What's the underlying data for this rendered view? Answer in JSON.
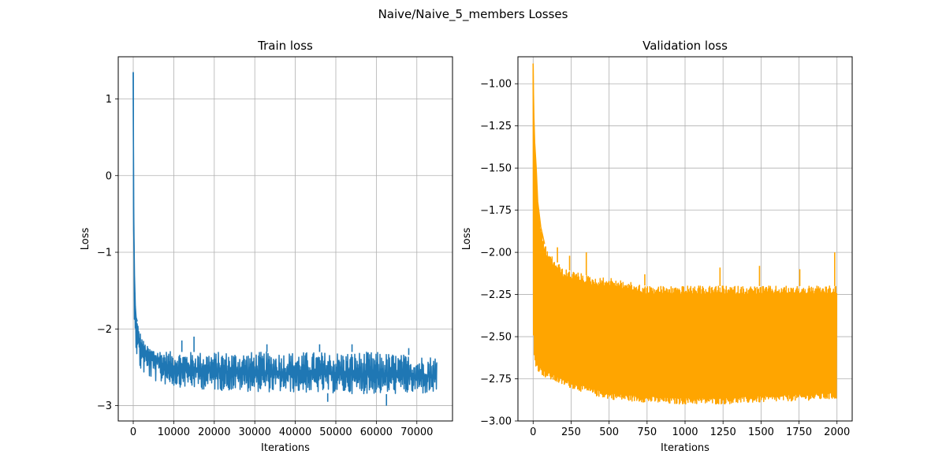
{
  "figure": {
    "suptitle": "Naive/Naive_5_members Losses"
  },
  "chart_data": [
    {
      "type": "line",
      "title": "Train loss",
      "xlabel": "Iterations",
      "ylabel": "Loss",
      "xlim": [
        -3700,
        78800
      ],
      "ylim": [
        -3.2,
        1.55
      ],
      "xticks": [
        0,
        10000,
        20000,
        30000,
        40000,
        50000,
        60000,
        70000
      ],
      "xtick_labels": [
        "0",
        "10000",
        "20000",
        "30000",
        "40000",
        "50000",
        "60000",
        "70000"
      ],
      "yticks": [
        1,
        0,
        -1,
        -2,
        -3
      ],
      "ytick_labels": [
        "1",
        "0",
        "−1",
        "−2",
        "−3"
      ],
      "grid": true,
      "color": "#1f77b4",
      "series": [
        {
          "x": [
            0,
            50,
            100,
            200,
            300,
            500,
            700,
            1000,
            1500,
            2000,
            2500,
            3000,
            4000,
            5000,
            7000,
            10000,
            15000,
            20000,
            30000,
            40000,
            50000,
            60000,
            70000,
            75000
          ],
          "y": [
            1.35,
            0.3,
            -0.55,
            -1.1,
            -1.5,
            -1.8,
            -1.95,
            -2.05,
            -2.15,
            -2.2,
            -2.25,
            -2.3,
            -2.35,
            -2.4,
            -2.45,
            -2.5,
            -2.53,
            -2.55,
            -2.57,
            -2.58,
            -2.59,
            -2.6,
            -2.61,
            -2.61
          ],
          "band_upper": [
            1.35,
            0.4,
            -0.4,
            -0.9,
            -1.3,
            -1.7,
            -1.85,
            -1.9,
            -2.0,
            -2.1,
            -2.15,
            -2.2,
            -2.25,
            -2.25,
            -2.28,
            -2.3,
            -2.3,
            -2.3,
            -2.3,
            -2.3,
            -2.3,
            -2.3,
            -2.35,
            -2.35
          ],
          "band_lower": [
            1.35,
            -0.6,
            -1.2,
            -1.6,
            -1.9,
            -2.1,
            -2.3,
            -2.45,
            -2.55,
            -2.58,
            -2.6,
            -2.62,
            -2.65,
            -2.68,
            -2.72,
            -2.75,
            -2.78,
            -2.8,
            -2.82,
            -2.83,
            -2.84,
            -2.85,
            -2.85,
            -2.85
          ],
          "spikes": [
            {
              "x": 15000,
              "y": -2.1
            },
            {
              "x": 12000,
              "y": -2.15
            },
            {
              "x": 33000,
              "y": -2.2
            },
            {
              "x": 46000,
              "y": -2.2
            },
            {
              "x": 54000,
              "y": -2.2
            },
            {
              "x": 62500,
              "y": -3.0
            },
            {
              "x": 48000,
              "y": -2.95
            },
            {
              "x": 68000,
              "y": -2.25
            }
          ]
        }
      ]
    },
    {
      "type": "line",
      "title": "Validation loss",
      "xlabel": "Iterations",
      "ylabel": "Loss",
      "xlim": [
        -100,
        2100
      ],
      "ylim": [
        -3.0,
        -0.84
      ],
      "xticks": [
        0,
        250,
        500,
        750,
        1000,
        1250,
        1500,
        1750,
        2000
      ],
      "xtick_labels": [
        "0",
        "250",
        "500",
        "750",
        "1000",
        "1250",
        "1500",
        "1750",
        "2000"
      ],
      "yticks": [
        -1.0,
        -1.25,
        -1.5,
        -1.75,
        -2.0,
        -2.25,
        -2.5,
        -2.75,
        -3.0
      ],
      "ytick_labels": [
        "−1.00",
        "−1.25",
        "−1.50",
        "−1.75",
        "−2.00",
        "−2.25",
        "−2.50",
        "−2.75",
        "−3.00"
      ],
      "grid": true,
      "color": "#ffa500",
      "series": [
        {
          "x": [
            0,
            2,
            5,
            10,
            20,
            30,
            50,
            75,
            100,
            150,
            200,
            300,
            400,
            500,
            600,
            750,
            900,
            1000,
            1250,
            1500,
            1750,
            2000
          ],
          "band_upper": [
            -0.88,
            -1.05,
            -1.2,
            -1.35,
            -1.5,
            -1.7,
            -1.85,
            -1.95,
            -2.0,
            -2.05,
            -2.1,
            -2.12,
            -2.15,
            -2.15,
            -2.17,
            -2.2,
            -2.2,
            -2.2,
            -2.2,
            -2.2,
            -2.2,
            -2.2
          ],
          "band_lower": [
            -0.88,
            -2.5,
            -2.6,
            -2.65,
            -2.68,
            -2.7,
            -2.72,
            -2.74,
            -2.75,
            -2.77,
            -2.79,
            -2.82,
            -2.85,
            -2.87,
            -2.88,
            -2.89,
            -2.9,
            -2.9,
            -2.9,
            -2.89,
            -2.88,
            -2.87
          ],
          "spikes": [
            {
              "x": 160,
              "y": -1.97
            },
            {
              "x": 240,
              "y": -2.02
            },
            {
              "x": 350,
              "y": -2.0
            },
            {
              "x": 735,
              "y": -2.13
            },
            {
              "x": 1230,
              "y": -2.09
            },
            {
              "x": 1490,
              "y": -2.08
            },
            {
              "x": 1755,
              "y": -2.1
            },
            {
              "x": 1985,
              "y": -2.0
            }
          ]
        }
      ]
    }
  ]
}
